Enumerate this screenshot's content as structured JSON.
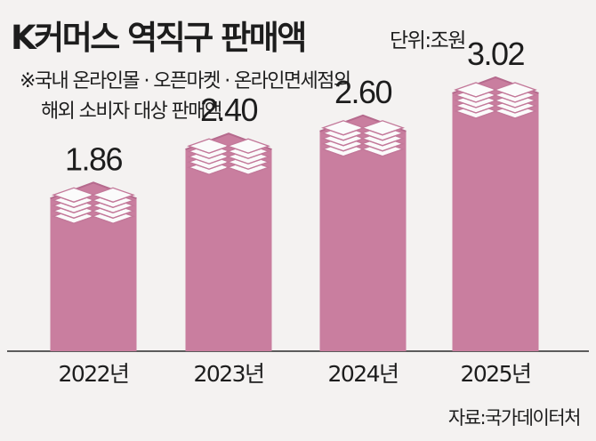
{
  "title": "K커머스 역직구 판매액",
  "unit": "단위:조원",
  "note": {
    "line1": "※국내 온라인몰 · 오픈마켓 · 온라인면세점의",
    "line2": "해외 소비자 대상 판매액"
  },
  "source": "자료:국가데이터처",
  "colors": {
    "bar": "#c97e9f",
    "bar_top": "#b56a8d",
    "paper": "#fbfbfb",
    "paper_line": "#c3799a",
    "background": "#f4f2f1"
  },
  "chart_data": {
    "type": "bar",
    "title": "K커머스 역직구 판매액",
    "unit": "조원",
    "categories": [
      "2022년",
      "2023년",
      "2024년",
      "2025년"
    ],
    "values": [
      1.86,
      2.4,
      2.6,
      3.02
    ],
    "value_labels": [
      "1.86",
      "2.40",
      "2.60",
      "3.02"
    ]
  }
}
